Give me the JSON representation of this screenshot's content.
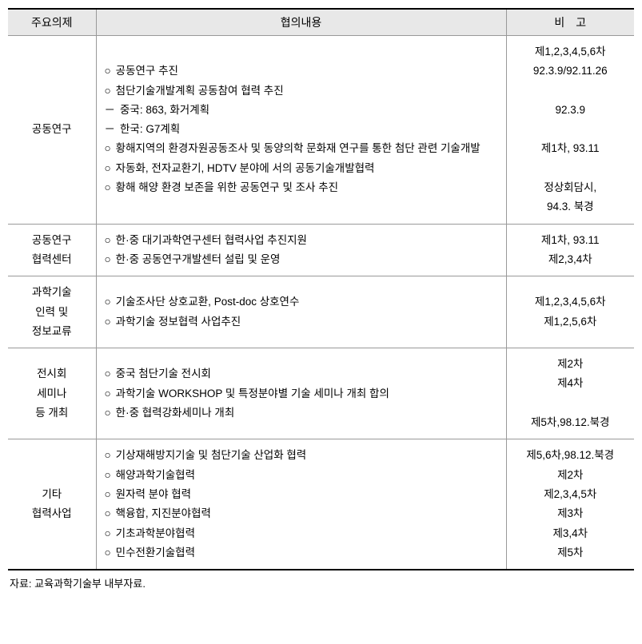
{
  "headers": {
    "col1": "주요의제",
    "col2": "협의내용",
    "col3": "비　고"
  },
  "rows": [
    {
      "topic": "공동연구",
      "contents": [
        {
          "bullet": "○",
          "text": "공동연구 추진"
        },
        {
          "bullet": "○",
          "text": "첨단기술개발계획 공동참여 협력 추진"
        },
        {
          "bullet": "－",
          "text": "중국: 863, 화거계획"
        },
        {
          "bullet": "－",
          "text": "한국: G7계획"
        },
        {
          "bullet": "○",
          "text": "황해지역의 환경자원공동조사 및 동양의학 문화재 연구를 통한 첨단 관련 기술개발"
        },
        {
          "bullet": "○",
          "text": "자동화, 전자교환기, HDTV 분야에 서의 공동기술개발협력"
        },
        {
          "bullet": "○",
          "text": "황해 해양 환경 보존을 위한 공동연구 및 조사 추진"
        }
      ],
      "notes": [
        "제1,2,3,4,5,6차",
        "92.3.9/92.11.26",
        "",
        "92.3.9",
        "",
        "제1차,  93.11",
        "",
        "정상회담시,",
        "94.3. 북경"
      ]
    },
    {
      "topic": "공동연구\n협력센터",
      "contents": [
        {
          "bullet": "○",
          "text": "한·중 대기과학연구센터 협력사업 추진지원"
        },
        {
          "bullet": "○",
          "text": "한·중 공동연구개발센터 설립 및 운영"
        }
      ],
      "notes": [
        "제1차,  93.11",
        "제2,3,4차"
      ]
    },
    {
      "topic": "과학기술\n인력 및\n정보교류",
      "contents": [
        {
          "bullet": "○",
          "text": "기술조사단 상호교환, Post-doc 상호연수"
        },
        {
          "bullet": "○",
          "text": "과학기술 정보협력 사업추진"
        }
      ],
      "notes": [
        "제1,2,3,4,5,6차",
        "제1,2,5,6차"
      ]
    },
    {
      "topic": "전시회\n세미나\n등 개최",
      "contents": [
        {
          "bullet": "○",
          "text": "중국 첨단기술 전시회"
        },
        {
          "bullet": "○",
          "text": "과학기술 WORKSHOP 및 특정분야별 기술 세미나 개최 합의"
        },
        {
          "bullet": "○",
          "text": "한·중 협력강화세미나 개최"
        }
      ],
      "notes": [
        "제2차",
        "제4차",
        "",
        "제5차,98.12.북경"
      ]
    },
    {
      "topic": "기타\n협력사업",
      "contents": [
        {
          "bullet": "○",
          "text": "기상재해방지기술 및 첨단기술 산업화 협력"
        },
        {
          "bullet": "○",
          "text": "해양과학기술협력"
        },
        {
          "bullet": "○",
          "text": "원자력 분야 협력"
        },
        {
          "bullet": "○",
          "text": "핵융합, 지진분야협력"
        },
        {
          "bullet": "○",
          "text": "기초과학분야협력"
        },
        {
          "bullet": "○",
          "text": "민수전환기술협력"
        }
      ],
      "notes": [
        "제5,6차,98.12.북경",
        "제2차",
        "제2,3,4,5차",
        "제3차",
        "제3,4차",
        "제5차"
      ]
    }
  ],
  "source": "자료: 교육과학기술부 내부자료."
}
